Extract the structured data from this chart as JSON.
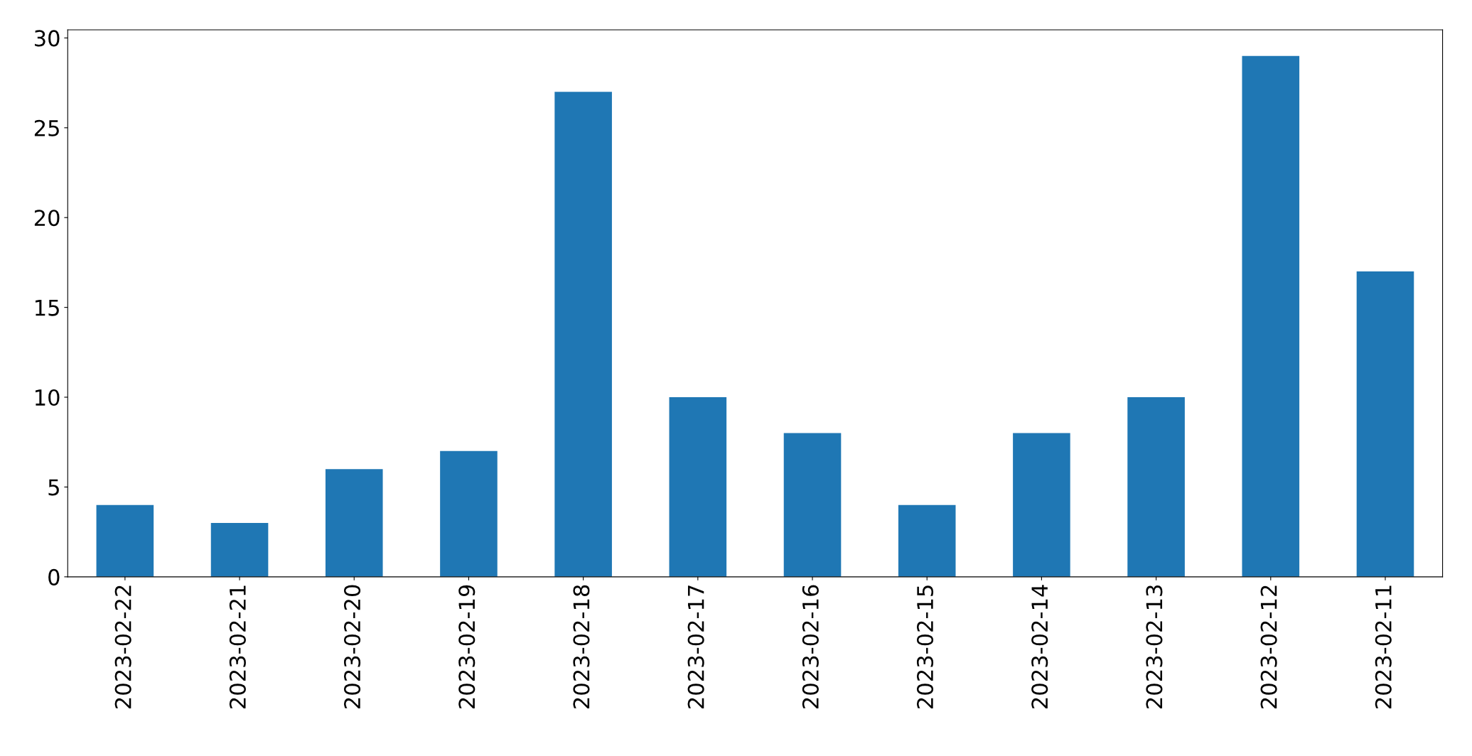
{
  "chart_data": {
    "type": "bar",
    "categories": [
      "2023-02-22",
      "2023-02-21",
      "2023-02-20",
      "2023-02-19",
      "2023-02-18",
      "2023-02-17",
      "2023-02-16",
      "2023-02-15",
      "2023-02-14",
      "2023-02-13",
      "2023-02-12",
      "2023-02-11"
    ],
    "values": [
      4,
      3,
      6,
      7,
      27,
      10,
      8,
      4,
      8,
      10,
      29,
      17
    ],
    "color": "#1f77b4",
    "ylim": [
      0,
      30.45
    ],
    "yticks": [
      0,
      5,
      10,
      15,
      20,
      25,
      30
    ],
    "grid": false,
    "legend": false
  }
}
